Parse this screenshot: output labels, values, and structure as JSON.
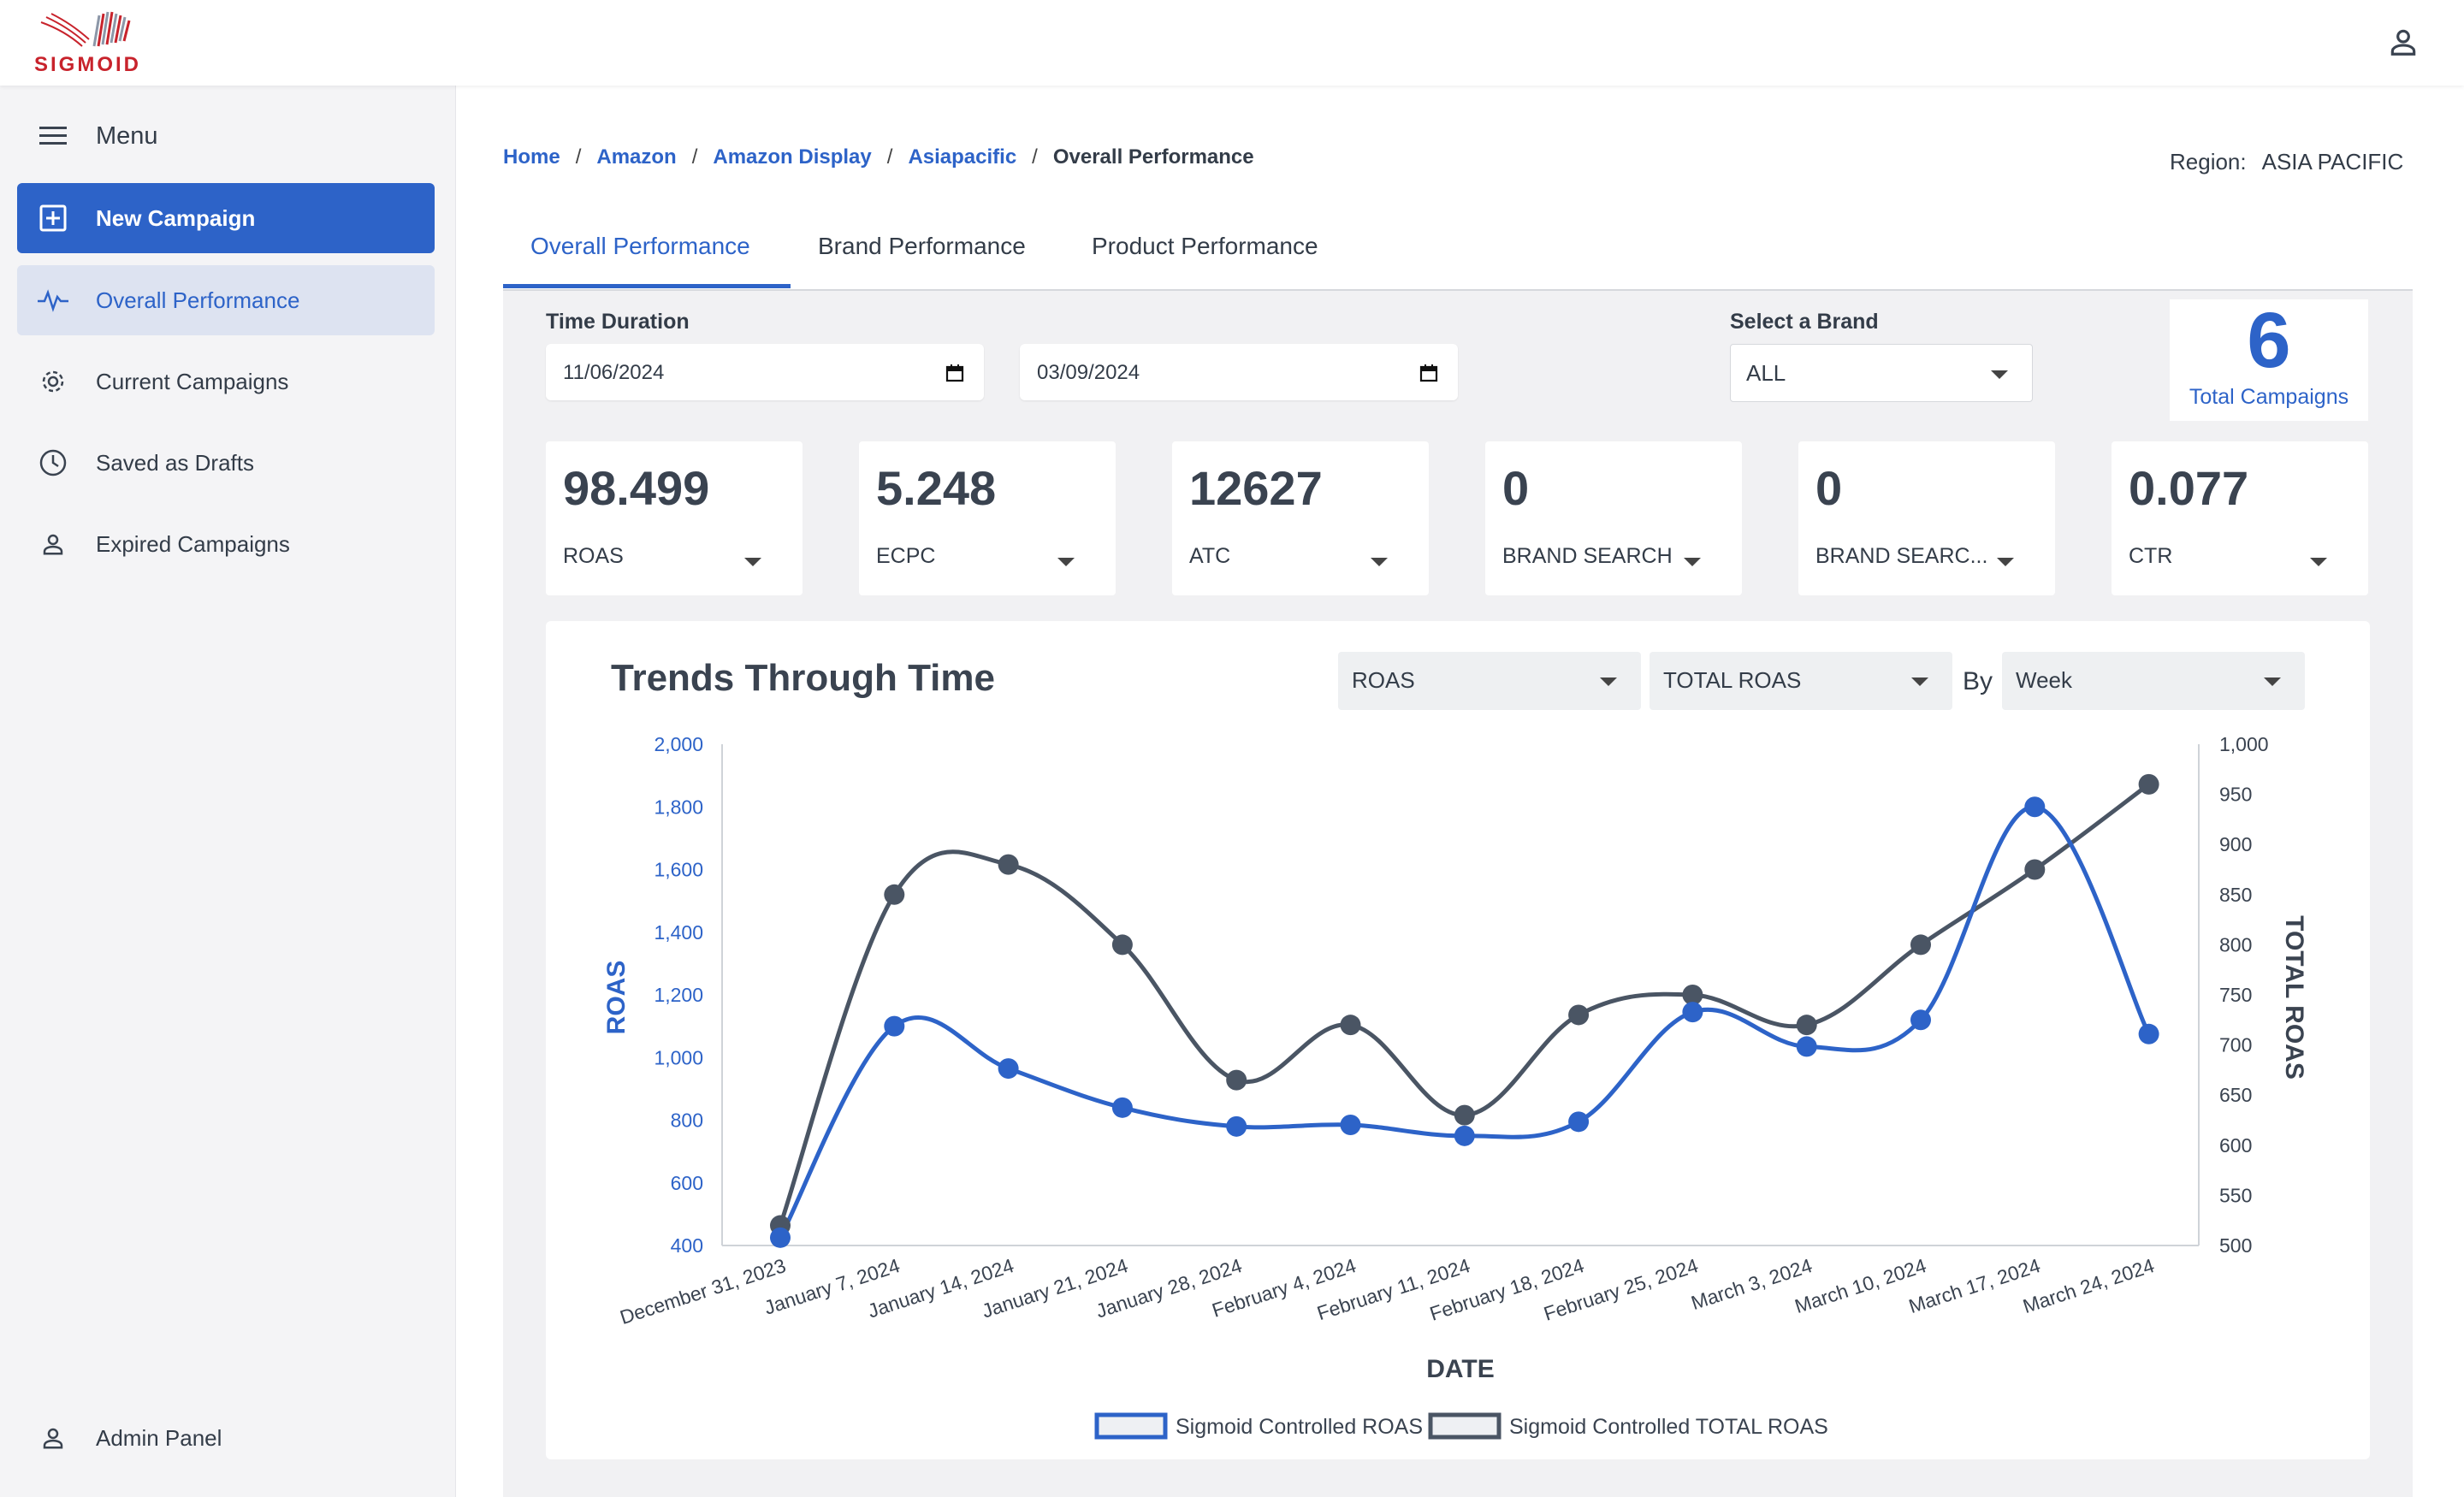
{
  "header": {
    "logo_text": "SIGMOID"
  },
  "sidebar": {
    "menu_label": "Menu",
    "new_campaign": "New Campaign",
    "items": [
      {
        "label": "Overall Performance"
      },
      {
        "label": "Current Campaigns"
      },
      {
        "label": "Saved as Drafts"
      },
      {
        "label": "Expired Campaigns"
      }
    ],
    "admin_panel": "Admin Panel"
  },
  "breadcrumb": {
    "items": [
      "Home",
      "Amazon",
      "Amazon Display",
      "Asiapacific"
    ],
    "current": "Overall Performance",
    "separator": "/"
  },
  "region": {
    "label": "Region:",
    "value": "ASIA PACIFIC"
  },
  "tabs": [
    "Overall Performance",
    "Brand Performance",
    "Product Performance"
  ],
  "filters": {
    "time_duration_label": "Time Duration",
    "start_date": "11/06/2024",
    "end_date": "03/09/2024",
    "brand_label": "Select a Brand",
    "brand_value": "ALL"
  },
  "total_campaigns": {
    "value": "6",
    "label": "Total Campaigns"
  },
  "kpis": [
    {
      "value": "98.499",
      "label": "ROAS"
    },
    {
      "value": "5.248",
      "label": "ECPC"
    },
    {
      "value": "12627",
      "label": "ATC"
    },
    {
      "value": "0",
      "label": "BRAND SEARCH"
    },
    {
      "value": "0",
      "label": "BRAND SEARC..."
    },
    {
      "value": "0.077",
      "label": "CTR"
    }
  ],
  "trend": {
    "title": "Trends Through Time",
    "metric_select": "ROAS",
    "metric2_select": "TOTAL ROAS",
    "by_label": "By",
    "period_select": "Week"
  },
  "colors": {
    "accent": "#2d63c8",
    "series1": "#2d63c8",
    "series2": "#4a5564"
  },
  "chart_data": {
    "type": "line",
    "x": [
      "December 31, 2023",
      "January 7, 2024",
      "January 14, 2024",
      "January 21, 2024",
      "January 28, 2024",
      "February 4, 2024",
      "February 11, 2024",
      "February 18, 2024",
      "February 25, 2024",
      "March 3, 2024",
      "March 10, 2024",
      "March 17, 2024",
      "March 24, 2024"
    ],
    "xlabel": "DATE",
    "ylabel": "ROAS",
    "ylabel_right": "TOTAL ROAS",
    "ylim": [
      400,
      2000
    ],
    "ylim_right": [
      500,
      1000
    ],
    "yticks": [
      "2,000",
      "1,800",
      "1,600",
      "1,400",
      "1,200",
      "1,000",
      "800",
      "600",
      "400"
    ],
    "yticks_right": [
      "1,000",
      "950",
      "900",
      "850",
      "800",
      "750",
      "700",
      "650",
      "600",
      "550",
      "500"
    ],
    "series": [
      {
        "name": "Sigmoid Controlled ROAS",
        "axis": "left",
        "values": [
          425,
          1100,
          965,
          840,
          780,
          785,
          750,
          795,
          1145,
          1035,
          1120,
          1800,
          1075
        ]
      },
      {
        "name": "Sigmoid Controlled TOTAL ROAS",
        "axis": "right",
        "values": [
          520,
          850,
          880,
          800,
          665,
          720,
          630,
          730,
          750,
          720,
          800,
          875,
          960
        ]
      }
    ],
    "legend": "bottom",
    "grid": false
  }
}
